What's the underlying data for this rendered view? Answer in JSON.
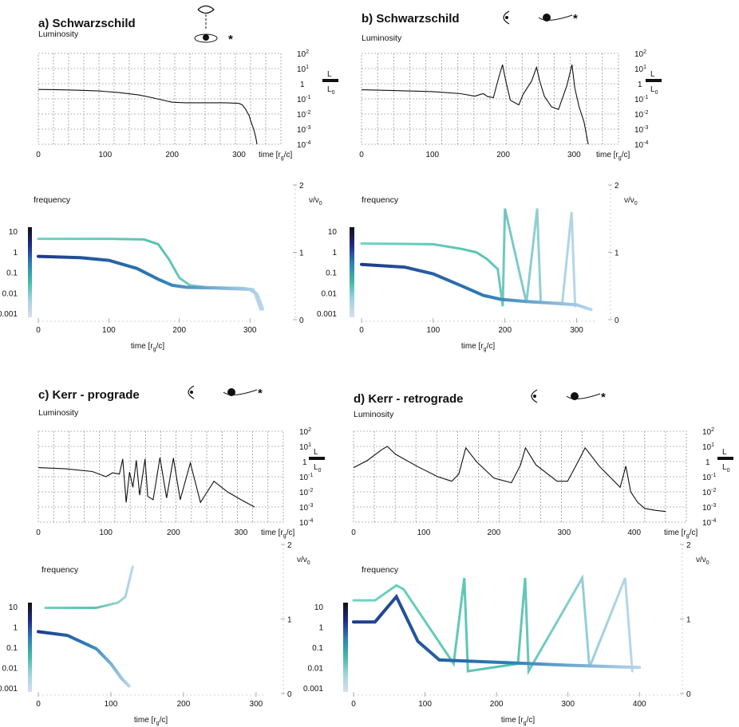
{
  "panels": [
    {
      "id": "a",
      "title": "a) Schwarzschild",
      "luminosity_label": "Luminosity",
      "frequency_label": "frequency",
      "time_label": "time [rg/c]",
      "lum_time_label": "time [rg/c]",
      "ratio_label_L": "L",
      "ratio_label_L0": "L0",
      "nu_label": "ν/ν0",
      "observer_view": "top"
    },
    {
      "id": "b",
      "title": "b) Schwarzschild",
      "luminosity_label": "Luminosity",
      "frequency_label": "frequency",
      "time_label": "time [rg/c]",
      "lum_time_label": "time [rg/c]",
      "ratio_label_L": "L",
      "ratio_label_L0": "L0",
      "nu_label": "ν/ν0",
      "observer_view": "side"
    },
    {
      "id": "c",
      "title": "c) Kerr - prograde",
      "luminosity_label": "Luminosity",
      "frequency_label": "frequency",
      "time_label": "time [rg/c]",
      "lum_time_label": "time [rg/c]",
      "ratio_label_L": "L",
      "ratio_label_L0": "L0",
      "nu_label": "ν/ν0",
      "observer_view": "side"
    },
    {
      "id": "d",
      "title": "d) Kerr - retrograde",
      "luminosity_label": "Luminosity",
      "frequency_label": "frequency",
      "time_label": "time [rg/c]",
      "lum_time_label": "time [rg/c]",
      "ratio_label_L": "L",
      "ratio_label_L0": "L0",
      "nu_label": "ν/ν0",
      "observer_view": "side"
    }
  ],
  "colorbar": {
    "ticks": [
      "10",
      "1",
      "0.1",
      "0.01",
      "0.001"
    ],
    "colors": [
      "#111111",
      "#1f2a88",
      "#2f7fb5",
      "#43b8a6",
      "#9fd3e0",
      "#dcdcee"
    ]
  },
  "chart_data": [
    {
      "panel": "a",
      "type": "line",
      "name": "luminosity",
      "ylabel": "L/L0",
      "yscale": "log",
      "ylim": [
        0.0001,
        100
      ],
      "yticks": [
        "10^2",
        "10^1",
        "1",
        "10^-1",
        "10^-2",
        "10^-3",
        "10^-4"
      ],
      "xlim": [
        0,
        330
      ],
      "xticks": [
        0,
        100,
        200,
        300
      ],
      "x": [
        0,
        30,
        60,
        90,
        120,
        150,
        170,
        190,
        200,
        220,
        250,
        280,
        300,
        305,
        310,
        315,
        318,
        322,
        325,
        327
      ],
      "y": [
        0.42,
        0.4,
        0.37,
        0.33,
        0.26,
        0.18,
        0.12,
        0.075,
        0.06,
        0.055,
        0.055,
        0.055,
        0.05,
        0.04,
        0.02,
        0.008,
        0.003,
        0.001,
        0.0003,
        0.0001
      ]
    },
    {
      "panel": "a",
      "type": "scatter",
      "name": "frequency",
      "ylabel": "ν/ν0",
      "ylim": [
        0,
        2
      ],
      "yticks": [
        0,
        1,
        2
      ],
      "xlim": [
        0,
        330
      ],
      "xticks": [
        0,
        100,
        200,
        300
      ],
      "series": [
        {
          "name": "upper",
          "x": [
            0,
            100,
            150,
            170,
            185,
            200,
            215,
            240,
            290,
            305,
            315
          ],
          "y": [
            1.2,
            1.2,
            1.19,
            1.12,
            0.9,
            0.62,
            0.51,
            0.48,
            0.47,
            0.45,
            0.15
          ]
        },
        {
          "name": "lower",
          "x": [
            0,
            60,
            100,
            140,
            170,
            190,
            210,
            250,
            300,
            310,
            318
          ],
          "y": [
            0.94,
            0.92,
            0.88,
            0.76,
            0.6,
            0.51,
            0.48,
            0.47,
            0.45,
            0.38,
            0.16
          ]
        }
      ]
    },
    {
      "panel": "b",
      "type": "line",
      "name": "luminosity",
      "ylabel": "L/L0",
      "yscale": "log",
      "ylim": [
        0.0001,
        100
      ],
      "yticks": [
        "10^2",
        "10^1",
        "1",
        "10^-1",
        "10^-2",
        "10^-3",
        "10^-4"
      ],
      "xlim": [
        0,
        330
      ],
      "xticks": [
        0,
        100,
        200,
        300
      ],
      "x": [
        0,
        50,
        100,
        140,
        160,
        168,
        172,
        178,
        186,
        194,
        199,
        203,
        210,
        222,
        228,
        240,
        247,
        252,
        258,
        268,
        278,
        290,
        297,
        301,
        307,
        314,
        320
      ],
      "y": [
        0.4,
        0.35,
        0.3,
        0.22,
        0.15,
        0.2,
        0.22,
        0.14,
        0.12,
        3,
        18,
        2,
        0.08,
        0.04,
        0.2,
        1.5,
        12,
        1.2,
        0.15,
        0.03,
        0.02,
        0.8,
        18,
        0.5,
        0.03,
        0.003,
        0.0001
      ]
    },
    {
      "panel": "b",
      "type": "scatter",
      "name": "frequency",
      "ylabel": "ν/ν0",
      "ylim": [
        0,
        2
      ],
      "yticks": [
        0,
        1,
        2
      ],
      "xlim": [
        0,
        330
      ],
      "xticks": [
        0,
        100,
        200,
        300
      ],
      "series": [
        {
          "name": "upper",
          "x": [
            0,
            100,
            140,
            160,
            175,
            190,
            197,
            200,
            230,
            245,
            250,
            280,
            293,
            298
          ],
          "y": [
            1.13,
            1.12,
            1.05,
            1.0,
            0.9,
            0.75,
            0.2,
            1.65,
            0.25,
            1.65,
            0.25,
            0.25,
            1.6,
            0.2
          ]
        },
        {
          "name": "lower",
          "x": [
            0,
            60,
            100,
            140,
            170,
            195,
            230,
            260,
            300,
            320
          ],
          "y": [
            0.82,
            0.78,
            0.68,
            0.5,
            0.36,
            0.3,
            0.27,
            0.25,
            0.22,
            0.15
          ]
        }
      ]
    },
    {
      "panel": "c",
      "type": "line",
      "name": "luminosity",
      "ylabel": "L/L0",
      "yscale": "log",
      "ylim": [
        0.0001,
        100
      ],
      "yticks": [
        "10^2",
        "10^1",
        "1",
        "10^-1",
        "10^-2",
        "10^-3",
        "10^-4"
      ],
      "xlim": [
        0,
        330
      ],
      "xticks": [
        0,
        100,
        200,
        300
      ],
      "x": [
        0,
        40,
        80,
        100,
        110,
        120,
        125,
        130,
        135,
        140,
        145,
        150,
        158,
        162,
        170,
        180,
        190,
        200,
        210,
        225,
        240,
        260,
        280,
        300,
        320
      ],
      "y": [
        0.4,
        0.33,
        0.22,
        0.1,
        0.18,
        0.15,
        1.5,
        0.002,
        0.2,
        0.02,
        1.2,
        0.006,
        1.5,
        0.005,
        0.003,
        1.8,
        0.004,
        1.7,
        0.003,
        0.8,
        0.002,
        0.05,
        0.01,
        0.003,
        0.001
      ]
    },
    {
      "panel": "c",
      "type": "scatter",
      "name": "frequency",
      "ylabel": "ν/ν0",
      "ylim": [
        0,
        2
      ],
      "yticks": [
        0,
        1,
        2
      ],
      "xlim": [
        0,
        330
      ],
      "xticks": [
        0,
        100,
        200,
        300
      ],
      "series": [
        {
          "name": "upper",
          "x": [
            10,
            80,
            110,
            120,
            130
          ],
          "y": [
            1.15,
            1.15,
            1.22,
            1.3,
            1.7
          ]
        },
        {
          "name": "lower",
          "x": [
            0,
            40,
            80,
            100,
            115,
            125
          ],
          "y": [
            0.83,
            0.78,
            0.6,
            0.4,
            0.2,
            0.1
          ]
        }
      ]
    },
    {
      "panel": "d",
      "type": "line",
      "name": "luminosity",
      "ylabel": "L/L0",
      "yscale": "log",
      "ylim": [
        0.0001,
        100
      ],
      "yticks": [
        "10^2",
        "10^1",
        "1",
        "10^-1",
        "10^-2",
        "10^-3",
        "10^-4"
      ],
      "xlim": [
        0,
        460
      ],
      "xticks": [
        0,
        100,
        200,
        300,
        400
      ],
      "x": [
        0,
        20,
        40,
        48,
        60,
        90,
        120,
        140,
        150,
        160,
        175,
        200,
        225,
        238,
        245,
        260,
        290,
        305,
        320,
        330,
        350,
        380,
        388,
        395,
        405,
        415,
        430,
        445
      ],
      "y": [
        0.4,
        1.2,
        6,
        10,
        3,
        0.5,
        0.1,
        0.05,
        0.15,
        8,
        1,
        0.08,
        0.04,
        0.6,
        8,
        0.6,
        0.05,
        0.05,
        1,
        8,
        0.5,
        0.02,
        0.5,
        0.01,
        0.002,
        0.0008,
        0.0006,
        0.0005
      ]
    },
    {
      "panel": "d",
      "type": "scatter",
      "name": "frequency",
      "ylabel": "ν/ν0",
      "ylim": [
        0,
        2
      ],
      "yticks": [
        0,
        1,
        2
      ],
      "xlim": [
        0,
        460
      ],
      "xticks": [
        0,
        100,
        200,
        300,
        400
      ],
      "series": [
        {
          "name": "upper",
          "x": [
            0,
            30,
            60,
            70,
            140,
            155,
            160,
            230,
            240,
            245,
            320,
            330,
            380,
            390
          ],
          "y": [
            1.25,
            1.25,
            1.45,
            1.4,
            0.4,
            1.55,
            0.3,
            0.4,
            1.55,
            0.3,
            1.55,
            0.35,
            1.55,
            0.3
          ]
        },
        {
          "name": "lower",
          "x": [
            0,
            30,
            60,
            90,
            120,
            200,
            300,
            400
          ],
          "y": [
            0.96,
            0.96,
            1.3,
            0.7,
            0.45,
            0.42,
            0.38,
            0.35
          ]
        }
      ]
    }
  ]
}
